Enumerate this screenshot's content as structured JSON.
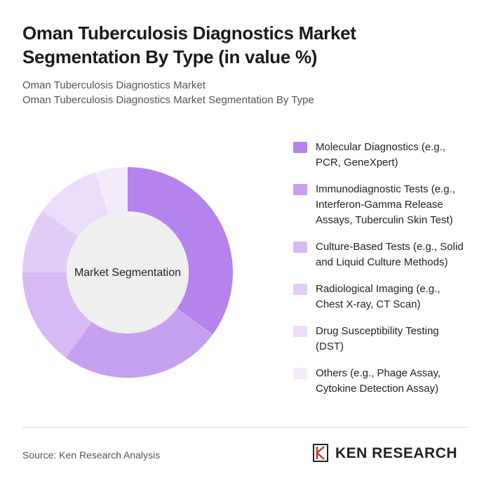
{
  "chart_data": {
    "type": "donut",
    "title": "Oman Tuberculosis Diagnostics Market Segmentation By Type (in value %)",
    "subtitle": [
      "Oman Tuberculosis Diagnostics Market",
      "Oman Tuberculosis Diagnostics Market Segmentation By Type"
    ],
    "center_label": "Market Segmentation",
    "categories": [
      "Molecular Diagnostics (e.g., PCR, GeneXpert)",
      "Immunodiagnostic Tests (e.g., Interferon-Gamma Release Assays, Tuberculin Skin Test)",
      "Culture-Based Tests (e.g., Solid and Liquid Culture Methods)",
      "Radiological Imaging (e.g., Chest X-ray, CT Scan)",
      "Drug Susceptibility Testing (DST)",
      "Others (e.g., Phage Assay, Cytokine Detection Assay)"
    ],
    "values": [
      35,
      25,
      15,
      10,
      10,
      5
    ],
    "colors": [
      "#b583ec",
      "#c8a0f0",
      "#d7baf4",
      "#e2cdf7",
      "#ebdcfa",
      "#f3ebfc"
    ],
    "legend": "right"
  },
  "footer": {
    "source": "Source: Ken Research Analysis",
    "brand": "KEN RESEARCH"
  }
}
